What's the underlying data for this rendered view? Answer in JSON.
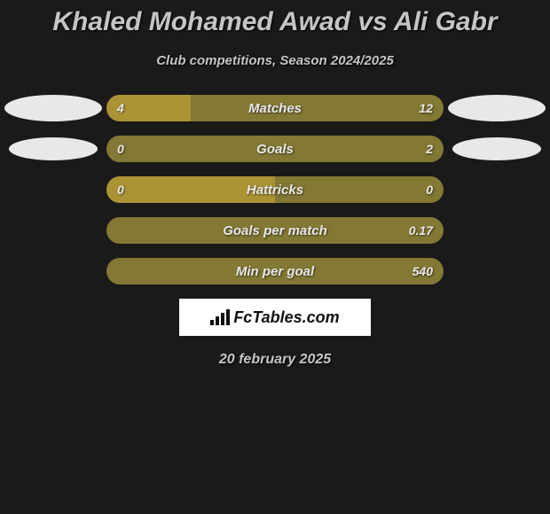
{
  "title": "Khaled Mohamed Awad vs Ali Gabr",
  "subtitle": "Club competitions, Season 2024/2025",
  "rows": [
    {
      "label": "Matches",
      "left": "4",
      "right": "12",
      "left_pct": 25,
      "bar_left_color": "#ab9335",
      "bar_right_color": "#837834",
      "show_left_ellipse": true,
      "show_right_ellipse": true,
      "ellipse_left_size": "ellipse-lg",
      "ellipse_right_size": "ellipse-lg"
    },
    {
      "label": "Goals",
      "left": "0",
      "right": "2",
      "left_pct": 0,
      "bar_left_color": "#ab9335",
      "bar_right_color": "#837834",
      "show_left_ellipse": true,
      "show_right_ellipse": true,
      "ellipse_left_size": "ellipse-md",
      "ellipse_right_size": "ellipse-md"
    },
    {
      "label": "Hattricks",
      "left": "0",
      "right": "0",
      "left_pct": 50,
      "bar_left_color": "#ab9335",
      "bar_right_color": "#837834",
      "show_left_ellipse": false,
      "show_right_ellipse": false
    },
    {
      "label": "Goals per match",
      "left": "",
      "right": "0.17",
      "left_pct": 0,
      "bar_left_color": "#ab9335",
      "bar_right_color": "#837834",
      "show_left_ellipse": false,
      "show_right_ellipse": false
    },
    {
      "label": "Min per goal",
      "left": "",
      "right": "540",
      "left_pct": 0,
      "bar_left_color": "#ab9335",
      "bar_right_color": "#837834",
      "show_left_ellipse": false,
      "show_right_ellipse": false
    }
  ],
  "logo_text": "FcTables.com",
  "date": "20 february 2025",
  "colors": {
    "background": "#1a1a1a",
    "text": "#c5c5c5",
    "ellipse": "#e8e8e8",
    "bar_light": "#ab9335",
    "bar_dark": "#837834",
    "logo_bg": "#ffffff"
  }
}
